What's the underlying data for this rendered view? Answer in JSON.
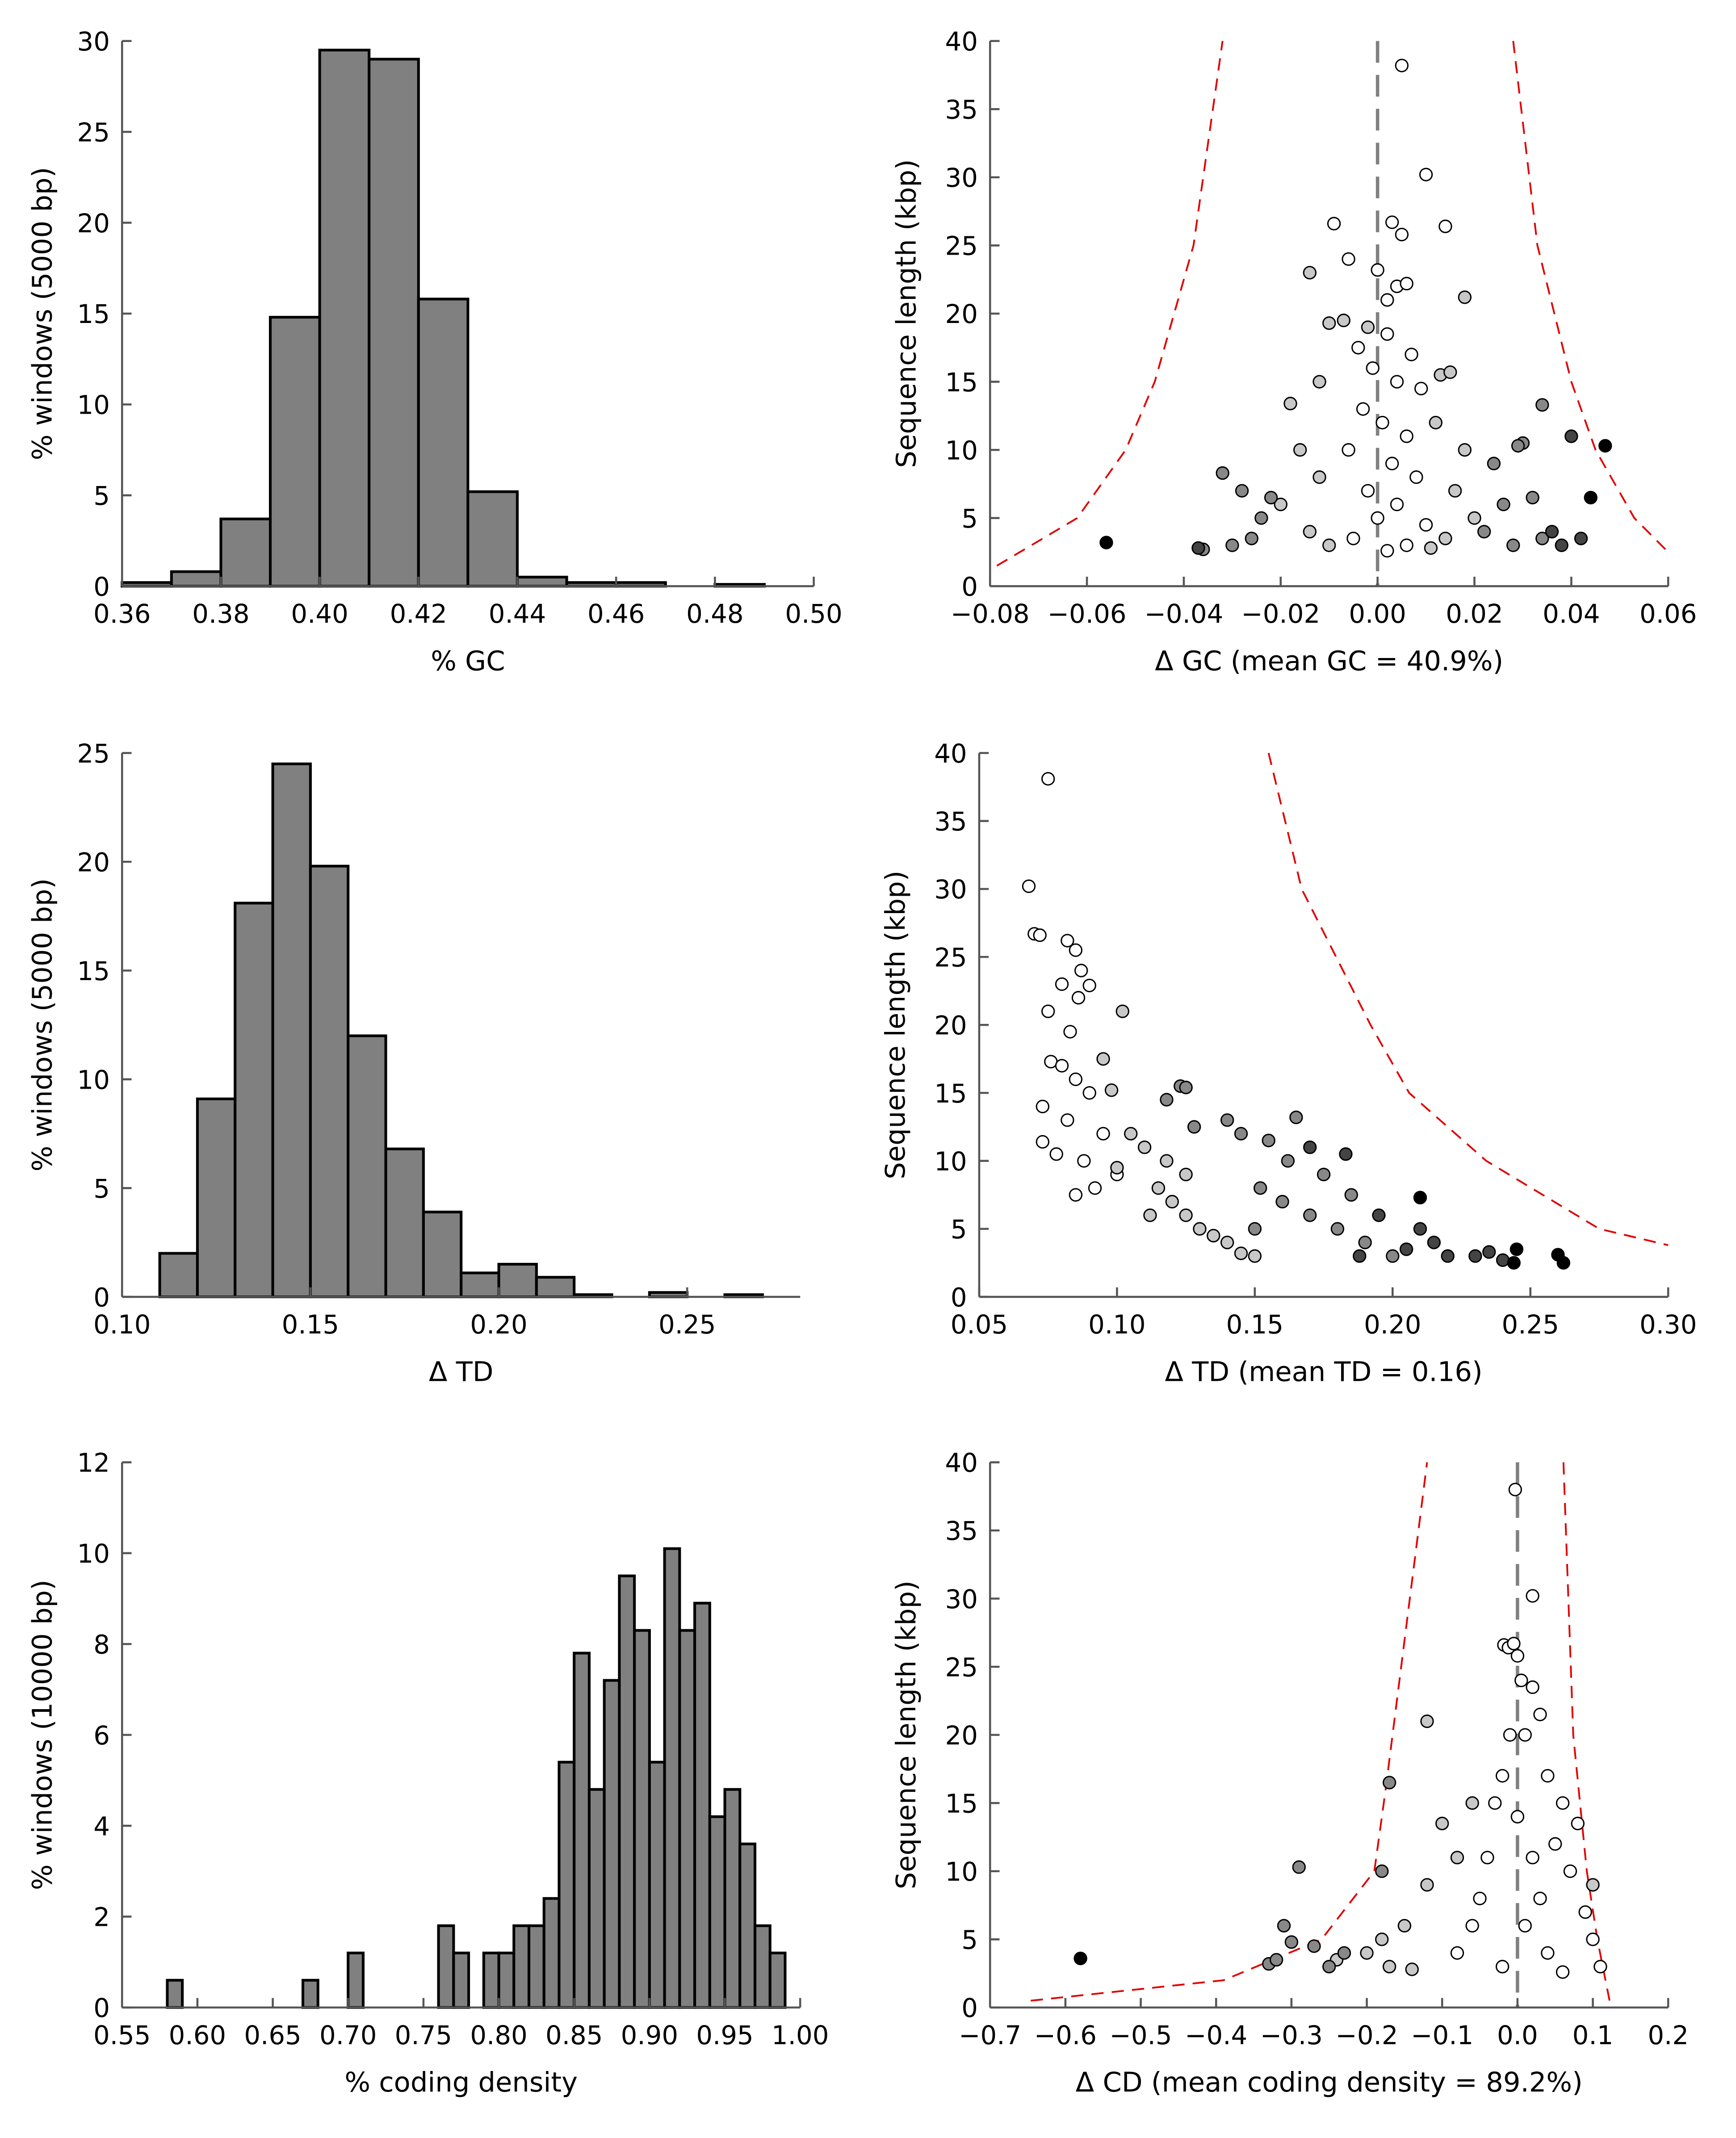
{
  "chart_data": [
    {
      "type": "histogram",
      "xlabel": "% GC",
      "ylabel": "% windows (5000 bp)",
      "color": "#808080",
      "edgecolor": "#000000",
      "bins": [
        0.36,
        0.37,
        0.38,
        0.39,
        0.4,
        0.41,
        0.42,
        0.43,
        0.44,
        0.45,
        0.46,
        0.47,
        0.48,
        0.49,
        0.5
      ],
      "values": [
        0.2,
        0.8,
        3.7,
        14.8,
        29.5,
        29.0,
        15.8,
        5.2,
        0.5,
        0.2,
        0.2,
        0,
        0.1,
        0
      ],
      "xlim": [
        0.36,
        0.5
      ],
      "xticks": [
        0.36,
        0.38,
        {
          "value": 0.4,
          "label": "0.40"
        },
        0.42,
        0.44,
        0.46,
        0.48,
        {
          "value": 0.5,
          "label": "0.50"
        }
      ],
      "ylim": [
        0,
        30
      ],
      "yticks": [
        0,
        5,
        10,
        15,
        20,
        25,
        30
      ]
    },
    {
      "type": "scatter",
      "xlabel": "Δ GC (mean GC = 40.9%)",
      "ylabel": "Sequence length (kbp)",
      "xlim": [
        -0.08,
        0.06
      ],
      "xticks": [
        {
          "value": -0.08,
          "label": "−0.08"
        },
        {
          "value": -0.06,
          "label": "−0.06"
        },
        {
          "value": -0.04,
          "label": "−0.04"
        },
        {
          "value": -0.02,
          "label": "−0.02"
        },
        {
          "value": 0,
          "label": "0.00"
        },
        0.02,
        0.04,
        0.06
      ],
      "ylim": [
        0,
        40
      ],
      "yticks": [
        0,
        5,
        10,
        15,
        20,
        25,
        30,
        35,
        40
      ],
      "vline": {
        "x": 0,
        "color": "#808080"
      },
      "curves": [
        {
          "color": "#e00000",
          "x": [
            -0.0786,
            -0.062,
            -0.052,
            -0.046,
            -0.038,
            -0.032
          ],
          "values": [
            1.5,
            5,
            10,
            15,
            25,
            40
          ]
        },
        {
          "color": "#e00000",
          "x": [
            0.028,
            0.033,
            0.04,
            0.045,
            0.053,
            0.06
          ],
          "values": [
            40,
            25,
            15,
            10,
            5,
            2.5
          ]
        }
      ],
      "series": [
        {
          "color": "#ffffff",
          "x": [
            0.005,
            0.01,
            0.003,
            0.005,
            0.014,
            -0.009,
            -0.006,
            0.0,
            0.004,
            0.006,
            0.002,
            -0.004,
            0.002,
            0.007,
            -0.001,
            0.004,
            0.009,
            -0.003,
            0.001,
            0.006,
            -0.006,
            0.003,
            0.008,
            -0.002,
            0.004,
            0.0,
            0.01,
            -0.005,
            0.006,
            0.002
          ],
          "values": [
            38.2,
            30.2,
            26.7,
            25.8,
            26.4,
            26.6,
            24,
            23.2,
            22,
            22.2,
            21,
            17.5,
            18.5,
            17,
            16,
            15,
            14.5,
            13,
            12,
            11,
            10,
            9,
            8,
            7,
            6,
            5,
            4.5,
            3.5,
            3,
            2.6
          ]
        },
        {
          "color": "#c8c8c8",
          "x": [
            -0.014,
            -0.01,
            -0.007,
            -0.002,
            0.013,
            0.018,
            -0.012,
            0.015,
            -0.018,
            0.012,
            -0.016,
            0.018,
            -0.012,
            0.016,
            -0.02,
            0.02,
            -0.014,
            0.014,
            -0.01,
            0.011
          ],
          "values": [
            23,
            19.3,
            19.5,
            19,
            15.5,
            21.2,
            15,
            15.7,
            13.4,
            12,
            10,
            10,
            8,
            7,
            6,
            5,
            4,
            3.5,
            3,
            2.8
          ]
        },
        {
          "color": "#888888",
          "x": [
            -0.032,
            -0.028,
            -0.024,
            -0.03,
            -0.022,
            0.024,
            0.026,
            0.03,
            0.032,
            0.028,
            0.022,
            -0.026,
            -0.036,
            0.034,
            0.029,
            0.034
          ],
          "values": [
            8.3,
            7,
            5,
            3,
            6.5,
            9,
            6,
            10.5,
            6.5,
            3,
            4,
            3.5,
            2.7,
            3.5,
            10.3,
            13.3
          ]
        },
        {
          "color": "#444444",
          "x": [
            0.04,
            0.036,
            0.038,
            0.042,
            -0.037
          ],
          "values": [
            11,
            4,
            3,
            3.5,
            2.8
          ]
        },
        {
          "color": "#000000",
          "x": [
            -0.056,
            0.047,
            0.044
          ],
          "values": [
            3.2,
            10.3,
            6.5
          ]
        }
      ]
    },
    {
      "type": "histogram",
      "xlabel": "Δ TD",
      "ylabel": "% windows (5000 bp)",
      "color": "#808080",
      "edgecolor": "#000000",
      "bins": [
        0.11,
        0.12,
        0.13,
        0.14,
        0.15,
        0.16,
        0.17,
        0.18,
        0.19,
        0.2,
        0.21,
        0.22,
        0.23,
        0.24,
        0.25,
        0.26,
        0.27
      ],
      "values": [
        2,
        9.1,
        18.1,
        24.5,
        19.8,
        12,
        6.8,
        3.9,
        1.1,
        1.5,
        0.9,
        0.1,
        0,
        0.2,
        0,
        0.1
      ],
      "xlim": [
        0.1,
        0.28
      ],
      "xticks": [
        {
          "value": 0.1,
          "label": "0.10"
        },
        0.15,
        {
          "value": 0.2,
          "label": "0.20"
        },
        0.25
      ],
      "ylim": [
        0,
        25
      ],
      "yticks": [
        0,
        5,
        10,
        15,
        20,
        25
      ]
    },
    {
      "type": "scatter",
      "xlabel": "Δ TD (mean TD = 0.16)",
      "ylabel": "Sequence length (kbp)",
      "xlim": [
        0.05,
        0.3
      ],
      "xticks": [
        0.05,
        {
          "value": 0.1,
          "label": "0.10"
        },
        0.15,
        {
          "value": 0.2,
          "label": "0.20"
        },
        0.25,
        {
          "value": 0.3,
          "label": "0.30"
        }
      ],
      "ylim": [
        0,
        40
      ],
      "yticks": [
        0,
        5,
        10,
        15,
        20,
        25,
        30,
        35,
        40
      ],
      "curves": [
        {
          "color": "#e00000",
          "x": [
            0.155,
            0.167,
            0.192,
            0.206,
            0.234,
            0.275,
            0.3
          ],
          "values": [
            40,
            30,
            20,
            15,
            10,
            5,
            3.8
          ]
        }
      ],
      "series": [
        {
          "color": "#ffffff",
          "x": [
            0.068,
            0.075,
            0.07,
            0.072,
            0.082,
            0.085,
            0.08,
            0.087,
            0.086,
            0.09,
            0.075,
            0.083,
            0.076,
            0.08,
            0.085,
            0.073,
            0.09,
            0.082,
            0.073,
            0.095,
            0.088,
            0.078,
            0.1,
            0.092,
            0.085
          ],
          "values": [
            30.2,
            38.1,
            26.7,
            26.6,
            26.2,
            25.5,
            23,
            24,
            22,
            22.9,
            21,
            19.5,
            17.3,
            17,
            16,
            14,
            15,
            13,
            11.4,
            12,
            10,
            10.5,
            9,
            8,
            7.5
          ]
        },
        {
          "color": "#c8c8c8",
          "x": [
            0.095,
            0.102,
            0.098,
            0.105,
            0.11,
            0.1,
            0.115,
            0.12,
            0.125,
            0.13,
            0.135,
            0.14,
            0.112,
            0.145,
            0.15,
            0.118,
            0.125
          ],
          "values": [
            17.5,
            21,
            15.2,
            12,
            11,
            9.5,
            8,
            7,
            6,
            5,
            4.5,
            4,
            6,
            3.2,
            3,
            10,
            9
          ]
        },
        {
          "color": "#888888",
          "x": [
            0.118,
            0.123,
            0.125,
            0.128,
            0.14,
            0.145,
            0.155,
            0.165,
            0.152,
            0.16,
            0.17,
            0.18,
            0.19,
            0.2,
            0.175,
            0.185,
            0.162,
            0.15
          ],
          "values": [
            14.5,
            15.5,
            15.4,
            12.5,
            13,
            12,
            11.5,
            13.2,
            8,
            7,
            6,
            5,
            4,
            3,
            9,
            7.5,
            10,
            5
          ]
        },
        {
          "color": "#444444",
          "x": [
            0.17,
            0.183,
            0.195,
            0.21,
            0.205,
            0.22,
            0.215,
            0.23,
            0.188,
            0.24,
            0.235
          ],
          "values": [
            11,
            10.5,
            6,
            5,
            3.5,
            3,
            4,
            3,
            3,
            2.7,
            3.3
          ]
        },
        {
          "color": "#000000",
          "x": [
            0.21,
            0.245,
            0.26,
            0.262,
            0.244
          ],
          "values": [
            7.3,
            3.5,
            3.1,
            2.5,
            2.5
          ]
        }
      ]
    },
    {
      "type": "histogram",
      "xlabel": "% coding density",
      "ylabel": "% windows (10000 bp)",
      "color": "#808080",
      "edgecolor": "#000000",
      "bins": [
        0.58,
        0.59,
        0.6,
        0.61,
        0.62,
        0.63,
        0.64,
        0.65,
        0.66,
        0.67,
        0.68,
        0.69,
        0.7,
        0.71,
        0.72,
        0.73,
        0.74,
        0.75,
        0.76,
        0.77,
        0.78,
        0.79,
        0.8,
        0.81,
        0.82,
        0.83,
        0.84,
        0.85,
        0.86,
        0.87,
        0.88,
        0.89,
        0.9,
        0.91,
        0.92,
        0.93,
        0.94,
        0.95,
        0.96,
        0.97,
        0.98,
        0.99
      ],
      "values": [
        0.6,
        0,
        0,
        0,
        0,
        0,
        0,
        0,
        0,
        0.6,
        0,
        0,
        1.2,
        0,
        0,
        0,
        0,
        0,
        1.8,
        1.2,
        0,
        1.2,
        1.2,
        1.8,
        1.8,
        2.4,
        5.4,
        7.8,
        4.8,
        7.2,
        9.5,
        8.3,
        5.4,
        10.1,
        8.3,
        8.9,
        4.2,
        4.8,
        3.6,
        1.8,
        1.2
      ],
      "xlim": [
        0.55,
        1.0
      ],
      "xticks": [
        0.55,
        {
          "value": 0.6,
          "label": "0.60"
        },
        0.65,
        {
          "value": 0.7,
          "label": "0.70"
        },
        0.75,
        {
          "value": 0.8,
          "label": "0.80"
        },
        0.85,
        {
          "value": 0.9,
          "label": "0.90"
        },
        0.95,
        {
          "value": 1,
          "label": "1.00"
        }
      ],
      "ylim": [
        0,
        12
      ],
      "yticks": [
        0,
        2,
        4,
        6,
        8,
        10,
        12
      ]
    },
    {
      "type": "scatter",
      "xlabel": "Δ CD (mean coding density = 89.2%)",
      "ylabel": "Sequence length (kbp)",
      "xlim": [
        -0.7,
        0.2
      ],
      "xticks": [
        {
          "value": -0.7,
          "label": "−0.7"
        },
        {
          "value": -0.6,
          "label": "−0.6"
        },
        {
          "value": -0.5,
          "label": "−0.5"
        },
        {
          "value": -0.4,
          "label": "−0.4"
        },
        {
          "value": -0.3,
          "label": "−0.3"
        },
        {
          "value": -0.2,
          "label": "−0.2"
        },
        {
          "value": -0.1,
          "label": "−0.1"
        },
        {
          "value": 0,
          "label": "0.0"
        },
        0.1,
        0.2
      ],
      "ylim": [
        0,
        40
      ],
      "yticks": [
        0,
        5,
        10,
        15,
        20,
        25,
        30,
        35,
        40
      ],
      "vline": {
        "x": 0,
        "color": "#808080"
      },
      "curves": [
        {
          "color": "#e00000",
          "x": [
            -0.646,
            -0.39,
            -0.26,
            -0.19,
            -0.175,
            -0.12
          ],
          "values": [
            0.5,
            2,
            5,
            10,
            16,
            40
          ]
        },
        {
          "color": "#e00000",
          "x": [
            0.061,
            0.074,
            0.092,
            0.106,
            0.124
          ],
          "values": [
            40,
            20,
            10,
            5,
            0
          ]
        }
      ],
      "series": [
        {
          "color": "#ffffff",
          "x": [
            -0.003,
            0.02,
            -0.018,
            -0.012,
            -0.005,
            0.0,
            0.02,
            0.005,
            -0.01,
            0.03,
            0.01,
            -0.02,
            0.04,
            0.06,
            0.08,
            -0.03,
            0.0,
            0.05,
            -0.04,
            0.02,
            0.07,
            -0.05,
            0.03,
            0.09,
            -0.06,
            0.01,
            0.1,
            -0.08,
            0.04,
            0.11,
            -0.02,
            0.06
          ],
          "values": [
            38,
            30.2,
            26.6,
            26.4,
            26.7,
            25.8,
            23.5,
            24,
            20,
            21.5,
            20,
            17,
            17,
            15,
            13.5,
            15,
            14,
            12,
            11,
            11,
            10,
            8,
            8,
            7,
            6,
            6,
            5,
            4,
            4,
            3,
            3,
            2.6
          ]
        },
        {
          "color": "#c8c8c8",
          "x": [
            -0.12,
            -0.06,
            -0.1,
            -0.08,
            -0.12,
            -0.15,
            -0.18,
            -0.2,
            -0.24,
            -0.17,
            -0.14,
            0.1
          ],
          "values": [
            21,
            15,
            13.5,
            11,
            9,
            6,
            5,
            4,
            3.5,
            3,
            2.8,
            9
          ]
        },
        {
          "color": "#888888",
          "x": [
            -0.17,
            -0.29,
            -0.31,
            -0.27,
            -0.33,
            -0.23,
            -0.25,
            -0.32,
            -0.18,
            -0.3
          ],
          "values": [
            16.5,
            10.3,
            6,
            4.5,
            3.2,
            4,
            3,
            3.5,
            10,
            4.8
          ]
        },
        {
          "color": "#000000",
          "x": [
            -0.58
          ],
          "values": [
            3.6
          ]
        }
      ]
    }
  ]
}
